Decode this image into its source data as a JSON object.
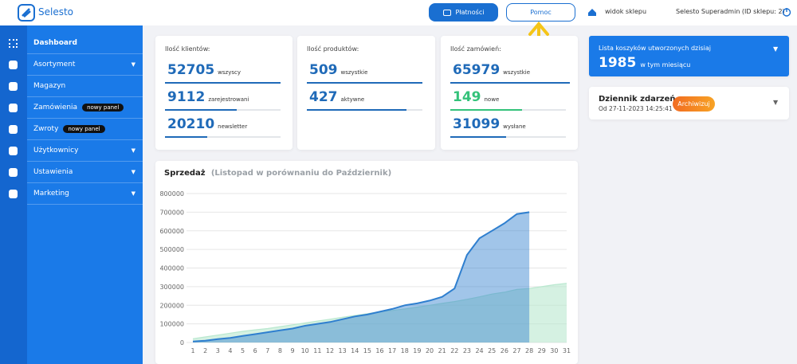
{
  "header": {
    "logo": "Selesto",
    "payments": "Płatności",
    "help": "Pomoc",
    "store_view": "widok sklepu",
    "user": "Selesto Superadmin (ID sklepu: 2)"
  },
  "sidebar": {
    "items": [
      {
        "label": "Dashboard"
      },
      {
        "label": "Asortyment"
      },
      {
        "label": "Magazyn"
      },
      {
        "label": "Zamówienia",
        "badge": "nowy panel"
      },
      {
        "label": "Zwroty",
        "badge": "nowy panel"
      },
      {
        "label": "Użytkownicy"
      },
      {
        "label": "Ustawienia"
      },
      {
        "label": "Marketing"
      }
    ]
  },
  "stats": [
    {
      "title": "Ilość klientów:",
      "rows": [
        {
          "value": 52705,
          "label": "wszyscy"
        },
        {
          "value": 9112,
          "label": "zarejestrowani"
        },
        {
          "value": 20210,
          "label": "newsletter"
        }
      ]
    },
    {
      "title": "Ilość produktów:",
      "rows": [
        {
          "value": 509,
          "label": "wszystkie"
        },
        {
          "value": 427,
          "label": "aktywne"
        }
      ]
    },
    {
      "title": "Ilość zamówień:",
      "rows": [
        {
          "value": 65979,
          "label": "wszystkie"
        },
        {
          "value": 149,
          "label": "nowe"
        },
        {
          "value": 31099,
          "label": "wysłane"
        }
      ]
    }
  ],
  "carts": {
    "title": "Lista koszyków utworzonych dzisiaj",
    "value": 1985,
    "label": "w tym miesiącu"
  },
  "events": {
    "title": "Dziennik zdarzeń",
    "date": "Od 27-11-2023 14:25:41",
    "button": "Archiwizuj"
  },
  "chart_data": {
    "type": "area",
    "title": "Sprzedaż",
    "subtitle": "(Listopad w porównaniu do Październik)",
    "categories": [
      "1",
      "2",
      "3",
      "4",
      "5",
      "6",
      "7",
      "8",
      "9",
      "10",
      "11",
      "12",
      "13",
      "14",
      "15",
      "16",
      "17",
      "18",
      "19",
      "20",
      "21",
      "22",
      "23",
      "24",
      "25",
      "26",
      "27",
      "28",
      "29",
      "30",
      "31"
    ],
    "series": [
      {
        "color": "#2f7fcf",
        "values": [
          5000,
          10000,
          18000,
          25000,
          35000,
          45000,
          55000,
          65000,
          75000,
          90000,
          100000,
          110000,
          125000,
          140000,
          150000,
          165000,
          180000,
          200000,
          210000,
          225000,
          245000,
          290000,
          470000,
          560000,
          600000,
          640000,
          690000,
          700000,
          null,
          null,
          null
        ]
      },
      {
        "color": "#b9e8cf",
        "values": [
          20000,
          30000,
          40000,
          50000,
          60000,
          68000,
          75000,
          85000,
          95000,
          105000,
          115000,
          125000,
          135000,
          145000,
          155000,
          165000,
          172000,
          180000,
          190000,
          200000,
          210000,
          220000,
          232000,
          245000,
          260000,
          270000,
          285000,
          290000,
          300000,
          310000,
          318000
        ]
      }
    ],
    "ylim": [
      0,
      800000
    ],
    "yticks": [
      0,
      100000,
      200000,
      300000,
      400000,
      500000,
      600000,
      700000,
      800000
    ],
    "grid": true
  }
}
